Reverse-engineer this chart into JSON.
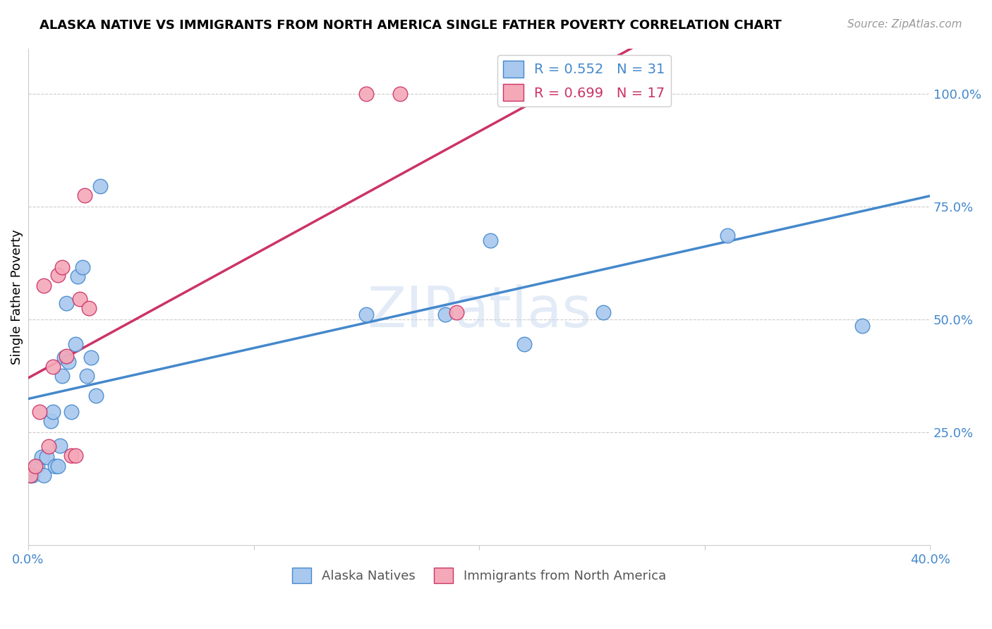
{
  "title": "ALASKA NATIVE VS IMMIGRANTS FROM NORTH AMERICA SINGLE FATHER POVERTY CORRELATION CHART",
  "source": "Source: ZipAtlas.com",
  "ylabel": "Single Father Poverty",
  "xlim": [
    0.0,
    0.4
  ],
  "ylim": [
    0.0,
    1.1
  ],
  "blue_color": "#A8C8EE",
  "pink_color": "#F4A8B8",
  "blue_line_color": "#4488CC",
  "pink_line_color": "#CC3366",
  "watermark": "ZIPatlas",
  "blue_x": [
    0.001,
    0.002,
    0.004,
    0.006,
    0.007,
    0.008,
    0.01,
    0.011,
    0.012,
    0.013,
    0.014,
    0.015,
    0.016,
    0.017,
    0.018,
    0.019,
    0.021,
    0.022,
    0.024,
    0.026,
    0.028,
    0.03,
    0.032,
    0.15,
    0.185,
    0.205,
    0.22,
    0.225,
    0.255,
    0.31,
    0.37
  ],
  "blue_y": [
    0.155,
    0.155,
    0.175,
    0.195,
    0.155,
    0.195,
    0.275,
    0.295,
    0.175,
    0.175,
    0.22,
    0.375,
    0.415,
    0.535,
    0.405,
    0.295,
    0.445,
    0.595,
    0.615,
    0.375,
    0.415,
    0.33,
    0.795,
    0.51,
    0.51,
    0.675,
    0.445,
    1.0,
    0.515,
    0.685,
    0.485
  ],
  "pink_x": [
    0.001,
    0.003,
    0.005,
    0.007,
    0.009,
    0.011,
    0.013,
    0.015,
    0.017,
    0.019,
    0.021,
    0.023,
    0.025,
    0.027,
    0.15,
    0.165,
    0.19
  ],
  "pink_y": [
    0.155,
    0.175,
    0.295,
    0.575,
    0.218,
    0.395,
    0.598,
    0.615,
    0.418,
    0.198,
    0.198,
    0.545,
    0.775,
    0.525,
    1.0,
    1.0,
    0.515
  ],
  "legend_r1_val": "0.552",
  "legend_n1_val": "31",
  "legend_r2_val": "0.699",
  "legend_n2_val": "17",
  "yticks": [
    0.25,
    0.5,
    0.75,
    1.0
  ],
  "ytick_labels": [
    "25.0%",
    "50.0%",
    "75.0%",
    "100.0%"
  ],
  "xticks": [
    0.0,
    0.1,
    0.2,
    0.3,
    0.4
  ],
  "xtick_labels": [
    "0.0%",
    "",
    "",
    "",
    "40.0%"
  ],
  "legend_bottom_labels": [
    "Alaska Natives",
    "Immigrants from North America"
  ]
}
